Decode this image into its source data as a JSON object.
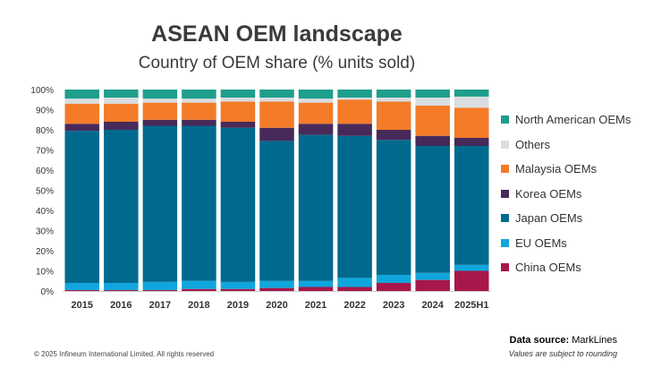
{
  "header": {
    "title": "ASEAN OEM landscape",
    "subtitle": "Country of OEM share (% units sold)"
  },
  "footer": {
    "source_label": "Data source:",
    "source_value": "MarkLines",
    "note": "Values are subject to rounding",
    "copyright": "© 2025 Infineum International Limited. All rights reserved"
  },
  "chart_data": {
    "type": "bar",
    "stacked": true,
    "title": "ASEAN OEM landscape",
    "subtitle": "Country of OEM share (% units sold)",
    "categories": [
      "2015",
      "2016",
      "2017",
      "2018",
      "2019",
      "2020",
      "2021",
      "2022",
      "2023",
      "2024",
      "2025H1"
    ],
    "ylim": [
      0,
      100
    ],
    "yticks": [
      "0%",
      "10%",
      "20%",
      "30%",
      "40%",
      "50%",
      "60%",
      "70%",
      "80%",
      "90%",
      "100%"
    ],
    "grid": false,
    "legend_position": "right",
    "series": [
      {
        "name": "China OEMs",
        "color": "#a8174b",
        "values": [
          0.5,
          0.5,
          0.5,
          1,
          1,
          1.5,
          2,
          2,
          4,
          5.5,
          10
        ]
      },
      {
        "name": "EU OEMs",
        "color": "#10a6dd",
        "values": [
          3.5,
          3.5,
          4,
          4,
          3.5,
          3.5,
          3,
          4.5,
          4,
          3.5,
          3
        ]
      },
      {
        "name": "Japan OEMs",
        "color": "#006a8e",
        "values": [
          75.5,
          76,
          77.5,
          77,
          76.5,
          69.5,
          72.5,
          70.5,
          67,
          63,
          59
        ]
      },
      {
        "name": "Korea OEMs",
        "color": "#472a59",
        "values": [
          3.5,
          4,
          3,
          3,
          3,
          6.5,
          5.5,
          6,
          5,
          5,
          4
        ]
      },
      {
        "name": "Malaysia OEMs",
        "color": "#f47b28",
        "values": [
          10,
          9,
          8.5,
          8.5,
          10,
          13,
          10.5,
          12,
          14,
          15,
          15
        ]
      },
      {
        "name": "Others",
        "color": "#d9dde0",
        "values": [
          2.5,
          3,
          2,
          2,
          2,
          2,
          2,
          1,
          2,
          4,
          5.5
        ]
      },
      {
        "name": "North American OEMs",
        "color": "#1f9e8c",
        "values": [
          4.5,
          4,
          4.5,
          4.5,
          4,
          4,
          4.5,
          4,
          4,
          4,
          3.5
        ]
      }
    ]
  }
}
